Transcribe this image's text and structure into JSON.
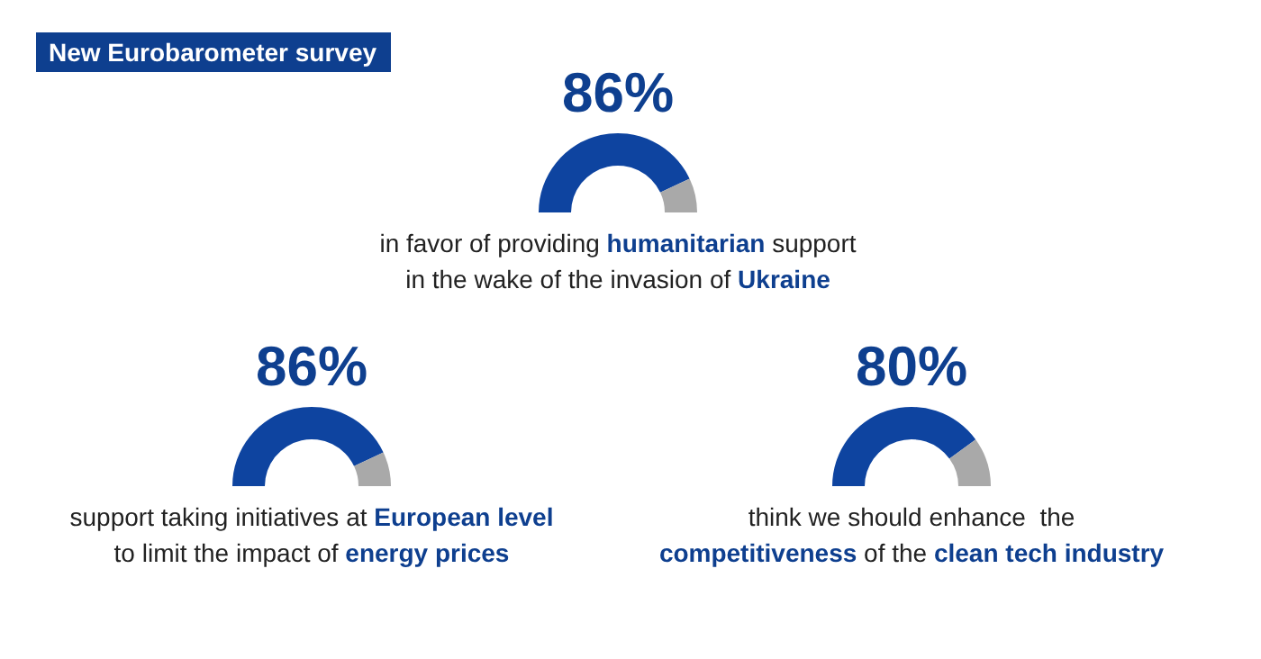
{
  "chart_data": [
    {
      "type": "other",
      "title": "New Eurobarometer survey"
    },
    {
      "type": "donut",
      "categories": [
        null,
        null
      ],
      "values": [
        86,
        14
      ],
      "colors": [
        "#0e44a0",
        "#a9a9a9"
      ],
      "value_labels": [
        "86%",
        null
      ],
      "annotations": [
        "in favor of providing ",
        "humanitarian",
        " support\nin the wake of the invasion of ",
        "Ukraine"
      ]
    },
    {
      "type": "donut",
      "categories": [
        null,
        null
      ],
      "values": [
        86,
        14
      ],
      "colors": [
        "#0e44a0",
        "#a9a9a9"
      ],
      "value_labels": [
        "86%",
        null
      ],
      "annotations": [
        "support taking initiatives at ",
        "European level",
        "\nto limit the impact of ",
        "energy prices"
      ]
    },
    {
      "type": "donut",
      "categories": [
        null,
        null
      ],
      "values": [
        80,
        20
      ],
      "colors": [
        "#0e44a0",
        "#a9a9a9"
      ],
      "value_labels": [
        "80%",
        null
      ],
      "annotations": [
        "think we should enhance  the\n",
        "competitiveness",
        " of the ",
        "clean tech industry"
      ]
    }
  ]
}
